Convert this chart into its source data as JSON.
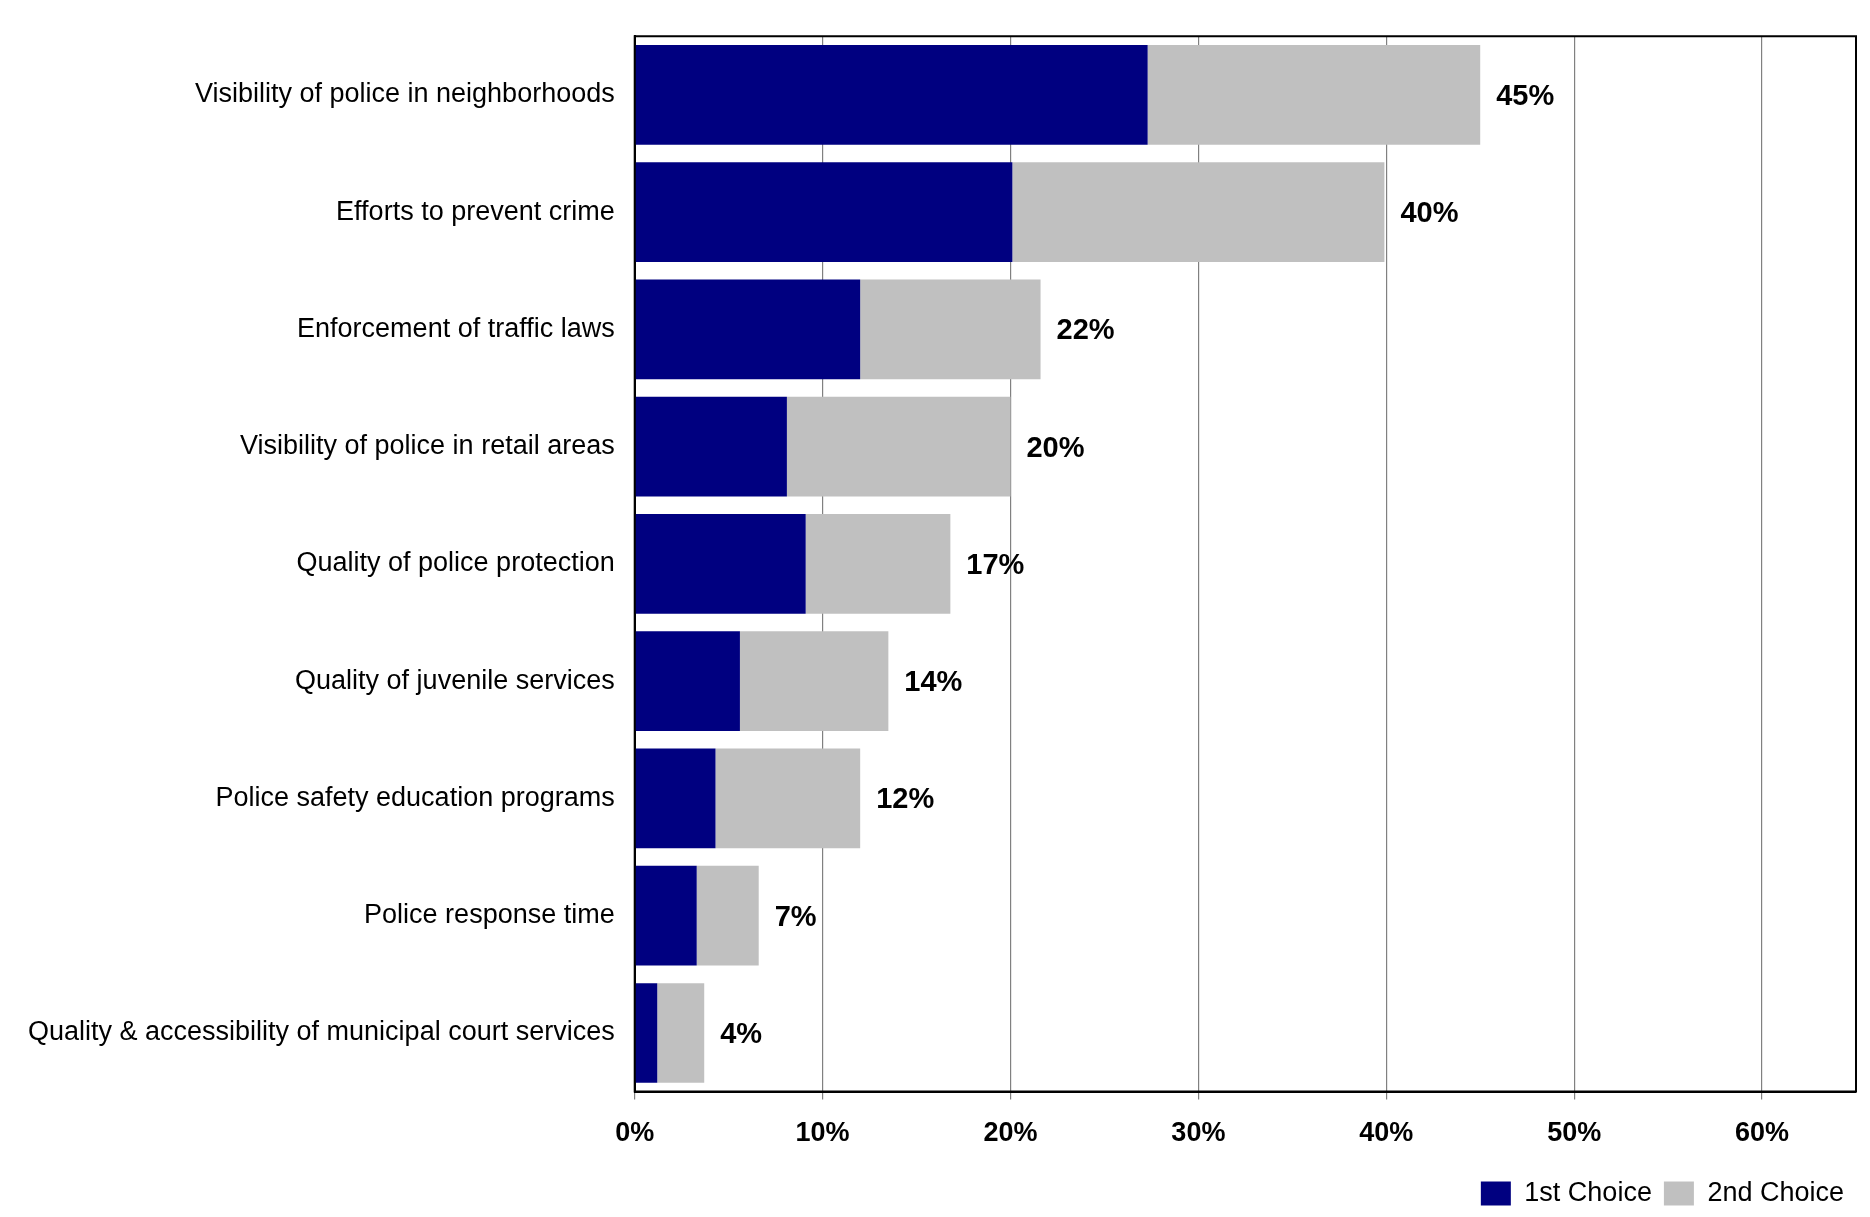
{
  "chart_data": {
    "type": "bar",
    "orientation": "horizontal",
    "stacked": true,
    "categories": [
      "Visibility of police in neighborhoods",
      "Efforts to prevent crime",
      "Enforcement of traffic laws",
      "Visibility of police in retail areas",
      "Quality of police protection",
      "Quality of juvenile services",
      "Police safety education programs",
      "Police response time",
      "Quality & accessibility of municipal court services"
    ],
    "series": [
      {
        "name": "1st Choice",
        "color": "#000080",
        "values": [
          27.3,
          20.1,
          12.0,
          8.1,
          9.1,
          5.6,
          4.3,
          3.3,
          1.2
        ]
      },
      {
        "name": "2nd Choice",
        "color": "#c0c0c0",
        "values": [
          17.7,
          19.8,
          9.6,
          11.9,
          7.7,
          7.9,
          7.7,
          3.3,
          2.5
        ]
      }
    ],
    "totals": [
      "45%",
      "40%",
      "22%",
      "20%",
      "17%",
      "14%",
      "12%",
      "7%",
      "4%"
    ],
    "xlim": [
      0,
      65
    ],
    "xticks": [
      {
        "value": 0,
        "label": "0%"
      },
      {
        "value": 10,
        "label": "10%"
      },
      {
        "value": 20,
        "label": "20%"
      },
      {
        "value": 30,
        "label": "30%"
      },
      {
        "value": 40,
        "label": "40%"
      },
      {
        "value": 50,
        "label": "50%"
      },
      {
        "value": 60,
        "label": "60%"
      }
    ],
    "grid": "x",
    "legend": "bottom right"
  }
}
